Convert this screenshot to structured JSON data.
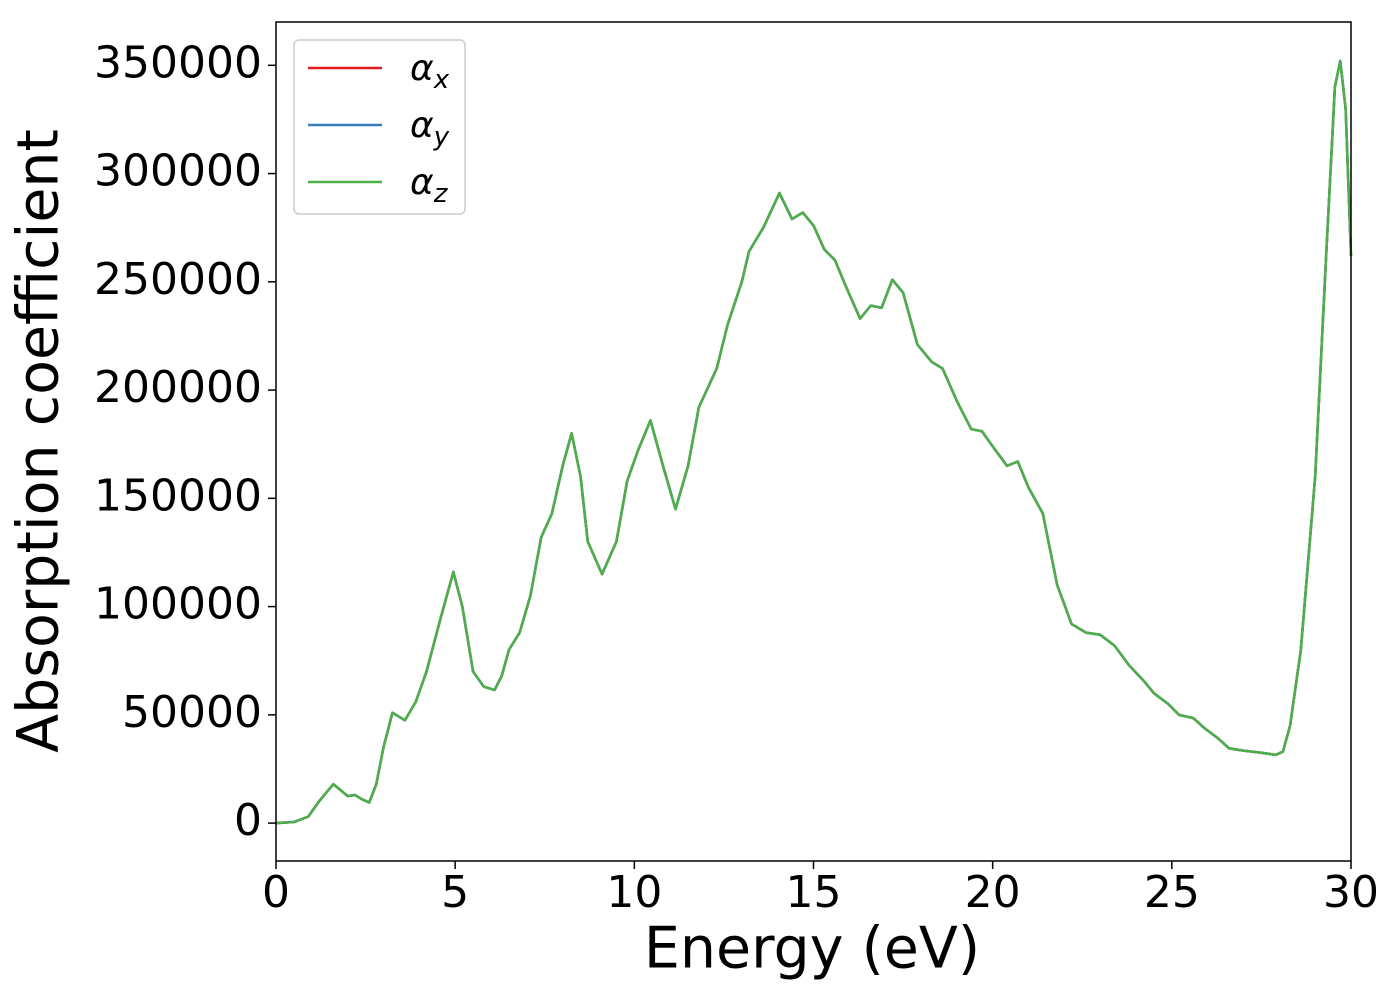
{
  "chart_data": {
    "type": "line",
    "xlabel": "Energy (eV)",
    "ylabel": "Absorption coefficient",
    "x": [
      0,
      0.5,
      0.9,
      1.2,
      1.6,
      2.0,
      2.2,
      2.4,
      2.6,
      2.8,
      3.0,
      3.25,
      3.6,
      3.9,
      4.2,
      4.6,
      4.95,
      5.2,
      5.5,
      5.8,
      6.1,
      6.3,
      6.5,
      6.8,
      7.1,
      7.4,
      7.7,
      8.0,
      8.25,
      8.5,
      8.7,
      9.1,
      9.5,
      9.8,
      10.1,
      10.45,
      10.8,
      11.15,
      11.5,
      11.8,
      12.3,
      12.6,
      13.0,
      13.2,
      13.6,
      14.05,
      14.4,
      14.7,
      15.0,
      15.3,
      15.6,
      15.9,
      16.3,
      16.6,
      16.9,
      17.2,
      17.5,
      17.9,
      18.3,
      18.6,
      19.0,
      19.4,
      19.7,
      20.0,
      20.4,
      20.7,
      21.0,
      21.4,
      21.8,
      22.2,
      22.6,
      23.0,
      23.4,
      23.8,
      24.2,
      24.5,
      24.9,
      25.2,
      25.6,
      25.9,
      26.3,
      26.6,
      27.0,
      27.5,
      27.9,
      28.1,
      28.3,
      28.6,
      29.0,
      29.3,
      29.55,
      29.7,
      29.85,
      30.0
    ],
    "series": [
      {
        "name": "αx",
        "color": "#e41a1c",
        "values": [
          0,
          500,
          3000,
          10000,
          18000,
          12500,
          13000,
          11000,
          9500,
          18000,
          35000,
          51000,
          47500,
          56000,
          70000,
          95000,
          116000,
          100000,
          70000,
          63000,
          61500,
          68000,
          80000,
          88000,
          105000,
          132000,
          143000,
          165000,
          180000,
          160000,
          130000,
          115000,
          130000,
          158000,
          172000,
          186000,
          165000,
          145000,
          165000,
          192000,
          210000,
          230000,
          250000,
          264000,
          275000,
          291000,
          279000,
          282000,
          276000,
          265000,
          260000,
          248000,
          233000,
          239000,
          238000,
          251000,
          245000,
          221000,
          213000,
          210000,
          195000,
          182000,
          181000,
          174000,
          165000,
          167000,
          155000,
          143000,
          110000,
          92000,
          88000,
          87000,
          82000,
          73000,
          66000,
          60000,
          55000,
          50000,
          48500,
          44000,
          39000,
          34500,
          33500,
          32500,
          31500,
          33000,
          45000,
          80000,
          160000,
          260000,
          340000,
          352000,
          330000,
          262000
        ]
      },
      {
        "name": "αy",
        "color": "#377eb8",
        "values": [
          0,
          500,
          3000,
          10000,
          18000,
          12500,
          13000,
          11000,
          9500,
          18000,
          35000,
          51000,
          47500,
          56000,
          70000,
          95000,
          116000,
          100000,
          70000,
          63000,
          61500,
          68000,
          80000,
          88000,
          105000,
          132000,
          143000,
          165000,
          180000,
          160000,
          130000,
          115000,
          130000,
          158000,
          172000,
          186000,
          165000,
          145000,
          165000,
          192000,
          210000,
          230000,
          250000,
          264000,
          275000,
          291000,
          279000,
          282000,
          276000,
          265000,
          260000,
          248000,
          233000,
          239000,
          238000,
          251000,
          245000,
          221000,
          213000,
          210000,
          195000,
          182000,
          181000,
          174000,
          165000,
          167000,
          155000,
          143000,
          110000,
          92000,
          88000,
          87000,
          82000,
          73000,
          66000,
          60000,
          55000,
          50000,
          48500,
          44000,
          39000,
          34500,
          33500,
          32500,
          31500,
          33000,
          45000,
          80000,
          160000,
          260000,
          340000,
          352000,
          330000,
          262000
        ]
      },
      {
        "name": "αz",
        "color": "#4daf4a",
        "values": [
          0,
          500,
          3000,
          10000,
          18000,
          12500,
          13000,
          11000,
          9500,
          18000,
          35000,
          51000,
          47500,
          56000,
          70000,
          95000,
          116000,
          100000,
          70000,
          63000,
          61500,
          68000,
          80000,
          88000,
          105000,
          132000,
          143000,
          165000,
          180000,
          160000,
          130000,
          115000,
          130000,
          158000,
          172000,
          186000,
          165000,
          145000,
          165000,
          192000,
          210000,
          230000,
          250000,
          264000,
          275000,
          291000,
          279000,
          282000,
          276000,
          265000,
          260000,
          248000,
          233000,
          239000,
          238000,
          251000,
          245000,
          221000,
          213000,
          210000,
          195000,
          182000,
          181000,
          174000,
          165000,
          167000,
          155000,
          143000,
          110000,
          92000,
          88000,
          87000,
          82000,
          73000,
          66000,
          60000,
          55000,
          50000,
          48500,
          44000,
          39000,
          34500,
          33500,
          32500,
          31500,
          33000,
          45000,
          80000,
          160000,
          260000,
          340000,
          352000,
          330000,
          262000
        ]
      }
    ],
    "xlim": [
      0,
      30
    ],
    "xticks": [
      0,
      5,
      10,
      15,
      20,
      25,
      30
    ],
    "ylim": [
      -17500,
      370000
    ],
    "yticks": [
      0,
      50000,
      100000,
      150000,
      200000,
      250000,
      300000,
      350000
    ],
    "legend": "upper left",
    "grid": false
  }
}
